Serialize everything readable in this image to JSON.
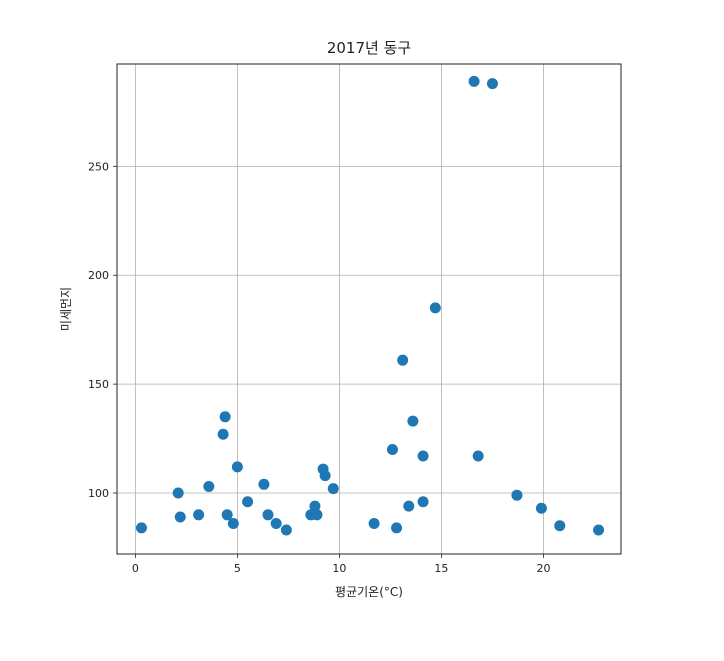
{
  "chart_data": {
    "type": "scatter",
    "title": "2017년 동구",
    "xlabel": "평균기온(°C)",
    "ylabel": "미세먼지",
    "xlim": [
      -0.9,
      23.8
    ],
    "ylim": [
      72,
      297
    ],
    "xticks": [
      0,
      5,
      10,
      15,
      20
    ],
    "yticks": [
      100,
      150,
      200,
      250
    ],
    "grid": true,
    "marker_color": "#1f77b4",
    "points": [
      {
        "x": 0.3,
        "y": 84
      },
      {
        "x": 2.1,
        "y": 100
      },
      {
        "x": 2.2,
        "y": 89
      },
      {
        "x": 3.1,
        "y": 90
      },
      {
        "x": 3.6,
        "y": 103
      },
      {
        "x": 4.3,
        "y": 127
      },
      {
        "x": 4.4,
        "y": 135
      },
      {
        "x": 4.5,
        "y": 90
      },
      {
        "x": 4.8,
        "y": 86
      },
      {
        "x": 5.0,
        "y": 112
      },
      {
        "x": 5.5,
        "y": 96
      },
      {
        "x": 6.3,
        "y": 104
      },
      {
        "x": 6.5,
        "y": 90
      },
      {
        "x": 6.9,
        "y": 86
      },
      {
        "x": 7.4,
        "y": 83
      },
      {
        "x": 8.6,
        "y": 90
      },
      {
        "x": 8.8,
        "y": 94
      },
      {
        "x": 8.9,
        "y": 90
      },
      {
        "x": 9.2,
        "y": 111
      },
      {
        "x": 9.3,
        "y": 108
      },
      {
        "x": 9.7,
        "y": 102
      },
      {
        "x": 11.7,
        "y": 86
      },
      {
        "x": 12.6,
        "y": 120
      },
      {
        "x": 12.8,
        "y": 84
      },
      {
        "x": 13.1,
        "y": 161
      },
      {
        "x": 13.4,
        "y": 94
      },
      {
        "x": 13.6,
        "y": 133
      },
      {
        "x": 14.1,
        "y": 117
      },
      {
        "x": 14.1,
        "y": 96
      },
      {
        "x": 14.7,
        "y": 185
      },
      {
        "x": 16.6,
        "y": 289
      },
      {
        "x": 16.8,
        "y": 117
      },
      {
        "x": 17.5,
        "y": 288
      },
      {
        "x": 18.7,
        "y": 99
      },
      {
        "x": 19.9,
        "y": 93
      },
      {
        "x": 20.8,
        "y": 85
      },
      {
        "x": 22.7,
        "y": 83
      }
    ]
  }
}
